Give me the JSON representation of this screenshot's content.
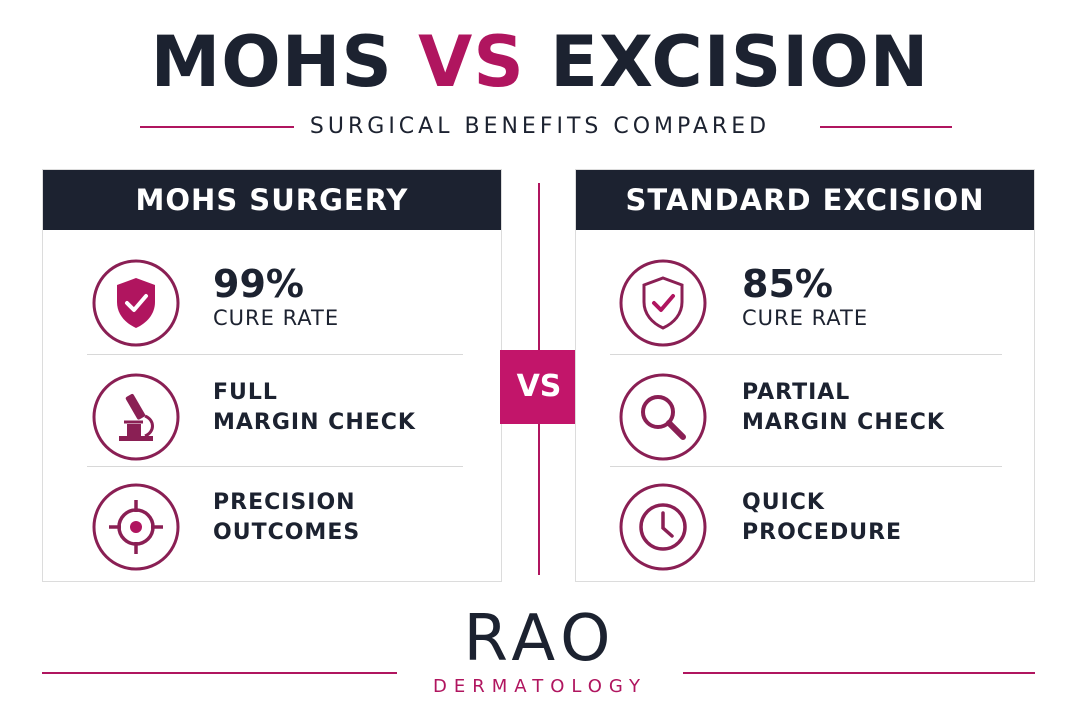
{
  "header": {
    "title_left": "MOHS",
    "title_vs": "VS",
    "title_right": "EXCISION",
    "subtitle": "SURGICAL BENEFITS COMPARED"
  },
  "left_panel": {
    "heading": "MOHS SURGERY",
    "rows": [
      {
        "icon": "shield-check-icon",
        "big": "99%",
        "small": "CURE RATE"
      },
      {
        "icon": "microscope-icon",
        "line1": "FULL",
        "line2": "MARGIN CHECK"
      },
      {
        "icon": "target-icon",
        "line1": "PRECISION",
        "line2": "OUTCOMES"
      }
    ]
  },
  "right_panel": {
    "heading": "STANDARD EXCISION",
    "rows": [
      {
        "icon": "shield-check-icon",
        "big": "85%",
        "small": "CURE RATE"
      },
      {
        "icon": "magnifier-icon",
        "line1": "PARTIAL",
        "line2": "MARGIN CHECK"
      },
      {
        "icon": "clock-icon",
        "line1": "QUICK",
        "line2": "PROCEDURE"
      }
    ]
  },
  "vs_badge": "VS",
  "brand": {
    "name": "RAO",
    "tagline": "DERMATOLOGY"
  },
  "colors": {
    "navy": "#1c2230",
    "accent": "#b0155f"
  }
}
